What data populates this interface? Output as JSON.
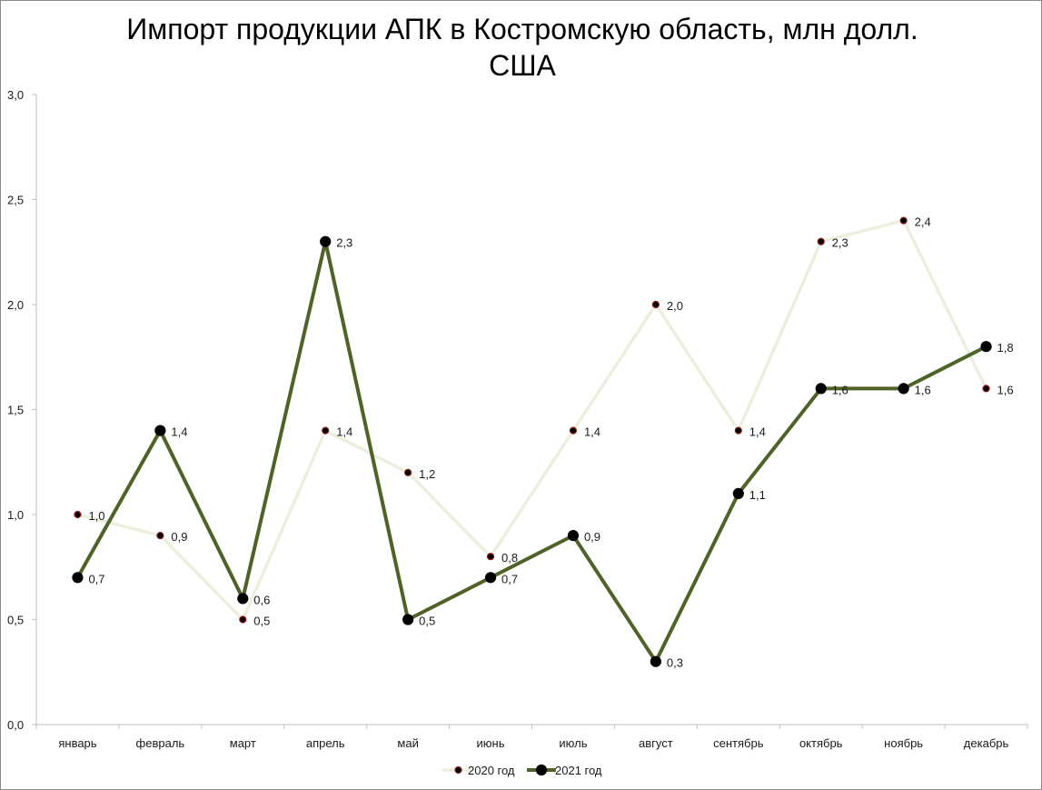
{
  "chart_data": {
    "type": "line",
    "title_lines": [
      "Импорт продукции АПК в Костромскую область, млн долл.",
      "США"
    ],
    "categories": [
      "январь",
      "февраль",
      "март",
      "апрель",
      "май",
      "июнь",
      "июль",
      "август",
      "сентябрь",
      "октябрь",
      "ноябрь",
      "декабрь"
    ],
    "series": [
      {
        "name": "2020 год",
        "values": [
          1.0,
          0.9,
          0.5,
          1.4,
          1.2,
          0.8,
          1.4,
          2.0,
          1.4,
          2.3,
          2.4,
          1.6
        ],
        "labels": [
          "1,0",
          "0,9",
          "0,5",
          "1,4",
          "1,2",
          "0,8",
          "1,4",
          "2,0",
          "1,4",
          "2,3",
          "2,4",
          "1,6"
        ],
        "line_color": "#eeeedd",
        "marker_color": "#000000",
        "marker_edge": "#8b1a1a"
      },
      {
        "name": "2021 год",
        "values": [
          0.7,
          1.4,
          0.6,
          2.3,
          0.5,
          0.7,
          0.9,
          0.3,
          1.1,
          1.6,
          1.6,
          1.8
        ],
        "labels": [
          "0,7",
          "1,4",
          "0,6",
          "2,3",
          "0,5",
          "0,7",
          "0,9",
          "0,3",
          "1,1",
          "1,6",
          "1,6",
          "1,8"
        ],
        "line_color": "#4f6228",
        "marker_color": "#000000",
        "marker_edge": "#000000"
      }
    ],
    "ylim": [
      0,
      3
    ],
    "y_ticks": [
      "0,0",
      "0,5",
      "1,0",
      "1,5",
      "2,0",
      "2,5",
      "3,0"
    ],
    "grid": false,
    "legend_position": "bottom"
  }
}
